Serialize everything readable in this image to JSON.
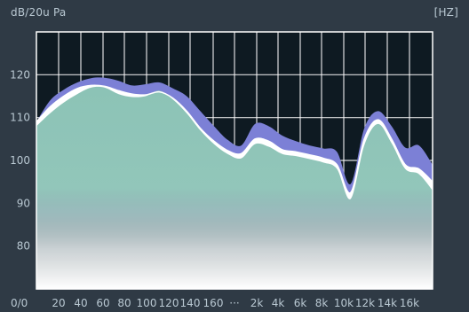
{
  "chart_data": {
    "type": "area",
    "ylabel": "dB/20u Pa",
    "xlabel": "[HZ]",
    "origin_label": "0/0",
    "ylim": [
      70,
      130
    ],
    "yticks": [
      80,
      90,
      100,
      110,
      120
    ],
    "x_tick_labels": [
      "20",
      "40",
      "60",
      "80",
      "100",
      "120",
      "140",
      "160",
      "···",
      "2k",
      "4k",
      "6k",
      "8k",
      "10k",
      "12k",
      "14k",
      "16k"
    ],
    "grid": true,
    "series": [
      {
        "values": [
          109,
          114,
          116.5,
          118.2,
          119.2,
          119.3,
          118.6,
          117.5,
          117.8,
          118.2,
          116.8,
          115,
          111.5,
          108,
          104.8,
          103.5,
          108.5,
          108,
          105.8,
          104.5,
          103.5,
          102.8,
          102,
          94.5,
          107.5,
          111.5,
          108,
          103,
          103.5,
          99
        ]
      },
      {
        "values": [
          109,
          112.5,
          115,
          116.8,
          117.5,
          117.3,
          116.3,
          115.5,
          115.3,
          116,
          114.5,
          111.5,
          107.5,
          104.5,
          102.3,
          101.6,
          105,
          104.5,
          102.5,
          102,
          101.3,
          100.5,
          99,
          92.5,
          105,
          109.5,
          105,
          99,
          98,
          95
        ]
      },
      {
        "values": [
          108,
          111,
          113.5,
          115.5,
          117,
          117,
          115.5,
          114.8,
          115,
          116.3,
          114.2,
          111,
          107,
          103.8,
          101.5,
          100.5,
          103.8,
          103.2,
          101.5,
          101,
          100.3,
          99.5,
          98,
          91,
          103.5,
          108.5,
          104,
          98,
          96.8,
          93
        ]
      }
    ],
    "colors": {
      "background": "#2f3a45",
      "plot_background": "#0e1a22",
      "grid": "#ffffff",
      "series_top": "#7c80d6",
      "series_outline": "#ffffff",
      "series_fill": "#8cc3b6",
      "axis_text": "#b9c8d2"
    }
  }
}
